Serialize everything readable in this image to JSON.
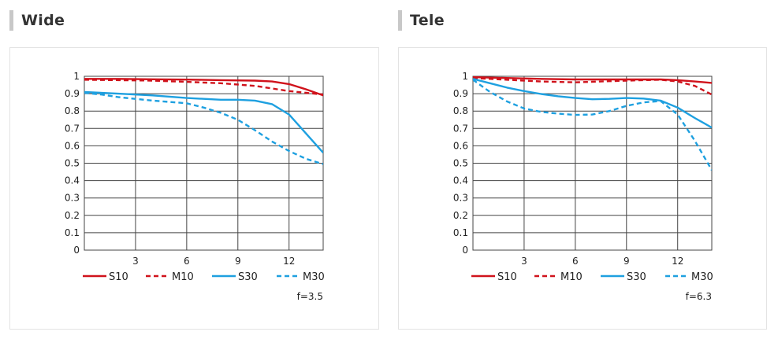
{
  "colors": {
    "red": "#d0121b",
    "blue": "#1ea0e0",
    "grid": "#444444",
    "heading_bar": "#c8c8c8"
  },
  "panels": [
    {
      "title": "Wide",
      "f_label": "f=3.5"
    },
    {
      "title": "Tele",
      "f_label": "f=6.3"
    }
  ],
  "chart_data": [
    {
      "type": "line",
      "title": "Wide",
      "xlim": [
        0,
        14
      ],
      "ylim": [
        0,
        1
      ],
      "xticks": [
        3,
        6,
        9,
        12
      ],
      "yticks": [
        "0",
        "0.1",
        "0.2",
        "0.3",
        "0.4",
        "0.5",
        "0.6",
        "0.7",
        "0.8",
        "0.9",
        "1"
      ],
      "annotation": "f=3.5",
      "series": [
        {
          "name": "S10",
          "color": "#d0121b",
          "dash": false,
          "x": [
            0,
            2,
            4,
            6,
            8,
            10,
            11,
            12,
            13,
            14
          ],
          "y": [
            0.985,
            0.985,
            0.983,
            0.981,
            0.978,
            0.975,
            0.97,
            0.955,
            0.925,
            0.89
          ]
        },
        {
          "name": "M10",
          "color": "#d0121b",
          "dash": true,
          "x": [
            0,
            2,
            4,
            6,
            8,
            10,
            11,
            12,
            13,
            14
          ],
          "y": [
            0.98,
            0.978,
            0.975,
            0.968,
            0.96,
            0.945,
            0.93,
            0.915,
            0.905,
            0.895
          ]
        },
        {
          "name": "S30",
          "color": "#1ea0e0",
          "dash": false,
          "x": [
            0,
            2,
            4,
            6,
            8,
            9,
            10,
            11,
            12,
            13,
            14
          ],
          "y": [
            0.91,
            0.9,
            0.89,
            0.875,
            0.865,
            0.865,
            0.86,
            0.84,
            0.78,
            0.67,
            0.56
          ]
        },
        {
          "name": "M30",
          "color": "#1ea0e0",
          "dash": true,
          "x": [
            0,
            1,
            2,
            4,
            6,
            7,
            8,
            9,
            10,
            11,
            12,
            13,
            14
          ],
          "y": [
            0.905,
            0.895,
            0.88,
            0.86,
            0.845,
            0.82,
            0.79,
            0.75,
            0.69,
            0.625,
            0.57,
            0.525,
            0.495
          ]
        }
      ]
    },
    {
      "type": "line",
      "title": "Tele",
      "xlim": [
        0,
        14
      ],
      "ylim": [
        0,
        1
      ],
      "xticks": [
        3,
        6,
        9,
        12
      ],
      "yticks": [
        "0",
        "0.1",
        "0.2",
        "0.3",
        "0.4",
        "0.5",
        "0.6",
        "0.7",
        "0.8",
        "0.9",
        "1"
      ],
      "annotation": "f=6.3",
      "series": [
        {
          "name": "S10",
          "color": "#d0121b",
          "dash": false,
          "x": [
            0,
            2,
            4,
            6,
            8,
            10,
            11,
            12,
            13,
            14
          ],
          "y": [
            0.995,
            0.99,
            0.985,
            0.982,
            0.982,
            0.982,
            0.982,
            0.978,
            0.97,
            0.962
          ]
        },
        {
          "name": "M10",
          "color": "#d0121b",
          "dash": true,
          "x": [
            0,
            2,
            4,
            6,
            8,
            10,
            11,
            12,
            13,
            14
          ],
          "y": [
            0.99,
            0.98,
            0.97,
            0.965,
            0.972,
            0.978,
            0.98,
            0.97,
            0.945,
            0.895
          ]
        },
        {
          "name": "S30",
          "color": "#1ea0e0",
          "dash": false,
          "x": [
            0,
            1,
            2,
            3,
            4,
            5,
            6,
            7,
            8,
            9,
            10,
            11,
            12,
            13,
            14
          ],
          "y": [
            0.985,
            0.96,
            0.935,
            0.915,
            0.898,
            0.885,
            0.875,
            0.868,
            0.87,
            0.875,
            0.872,
            0.86,
            0.82,
            0.76,
            0.705
          ]
        },
        {
          "name": "M30",
          "color": "#1ea0e0",
          "dash": true,
          "x": [
            0,
            1,
            2,
            3,
            4,
            5,
            6,
            7,
            8,
            9,
            10,
            11,
            12,
            13,
            14
          ],
          "y": [
            0.98,
            0.91,
            0.855,
            0.815,
            0.795,
            0.785,
            0.778,
            0.78,
            0.8,
            0.83,
            0.85,
            0.858,
            0.78,
            0.63,
            0.46
          ]
        }
      ]
    }
  ]
}
